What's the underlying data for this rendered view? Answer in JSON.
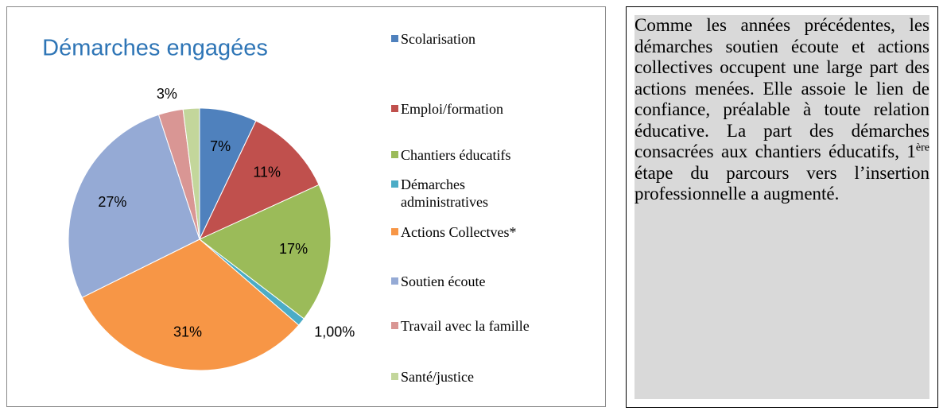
{
  "chart_data": {
    "type": "pie",
    "title": "Démarches engagées",
    "categories": [
      "Scolarisation",
      "Emploi/formation",
      "Chantiers éducatifs",
      "Démarches administratives",
      "Actions Collectves*",
      "Soutien écoute",
      "Travail avec la famille",
      "Santé/justice"
    ],
    "values": [
      7,
      11,
      17,
      1,
      31,
      27,
      3,
      2
    ],
    "value_labels": [
      "7%",
      "11%",
      "17%",
      "1,00%",
      "31%",
      "27%",
      "3%",
      null
    ],
    "colors": [
      "#4f81bd",
      "#c0504d",
      "#9bbb59",
      "#4bacc6",
      "#f79646",
      "#95aad5",
      "#d99694",
      "#c3d69b"
    ]
  },
  "text": {
    "before": "Comme les années précédentes, les démarches soutien écoute et actions collectives occupent une large part des actions menées. Elle assoie le lien de confiance, préalable à toute relation éducative. La part des démarches consacrées aux chantiers éducatifs, 1",
    "sup": "ère",
    "after": " étape du parcours vers l’insertion professionnelle a augmenté."
  }
}
